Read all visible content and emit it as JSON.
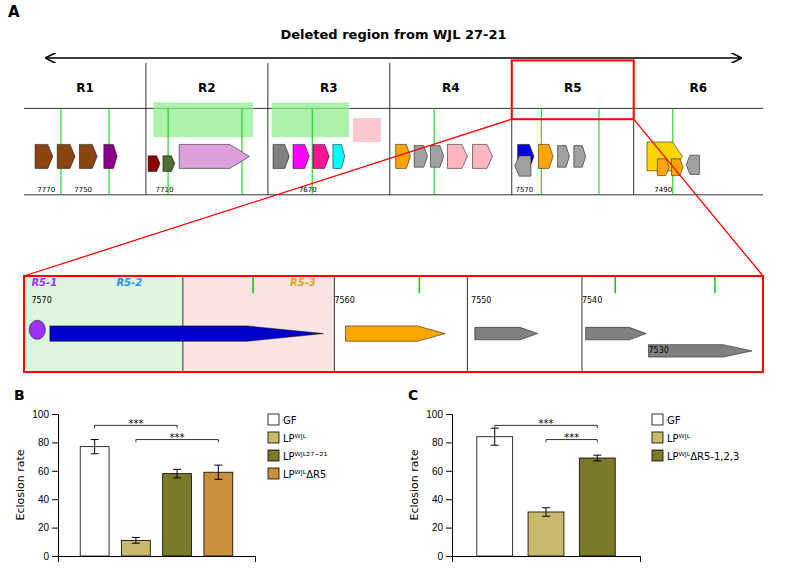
{
  "chart_data": [
    {
      "type": "diagram",
      "title": "Deleted region from WJL 27-21",
      "categories": [
        "R1",
        "R2",
        "R3",
        "R4",
        "R5",
        "R6"
      ],
      "annotations": [
        {
          "text": "A"
        },
        {
          "text": "7770"
        },
        {
          "text": "7750"
        },
        {
          "text": "7710"
        },
        {
          "text": "7670"
        },
        {
          "text": "7570"
        },
        {
          "text": "7490"
        },
        {
          "text": "R5-1",
          "color": "#9b30ff"
        },
        {
          "text": "R5-2",
          "color": "#1e90ff"
        },
        {
          "text": "R5-3",
          "color": "#daa520"
        },
        {
          "text": "7570"
        },
        {
          "text": "7560"
        },
        {
          "text": "7550"
        },
        {
          "text": "7540"
        },
        {
          "text": "7530"
        }
      ]
    },
    {
      "type": "bar",
      "ylabel": "Eclosion rate",
      "categories": [
        null
      ],
      "series": [
        {
          "name": "GF",
          "color": "#ffffff",
          "values": [
            77
          ],
          "errors": [
            5
          ]
        },
        {
          "name": "LPᵂᴶᴸ",
          "color": "#c8b96e",
          "values": [
            11
          ],
          "errors": [
            2
          ]
        },
        {
          "name": "LPᵂᴶᴸ²⁷⁻²¹",
          "color": "#7a7a2a",
          "values": [
            58
          ],
          "errors": [
            3
          ]
        },
        {
          "name": "LPᵂᴶᴸΔR5",
          "color": "#c8913a",
          "values": [
            59
          ],
          "errors": [
            5
          ]
        }
      ],
      "ylim": [
        0,
        100
      ],
      "yticks": [
        0,
        20,
        40,
        60,
        80,
        100
      ],
      "legend": "right",
      "tick_labels": "y",
      "annotations": [
        {
          "text": "B"
        },
        {
          "text": "***",
          "between": [
            "GF",
            "LPᵂᴶᴸ²⁷⁻²¹"
          ]
        },
        {
          "text": "***",
          "between": [
            "LPᵂᴶᴸ",
            "LPᵂᴶᴸΔR5"
          ]
        }
      ]
    },
    {
      "type": "bar",
      "ylabel": "Eclosion rate",
      "categories": [
        null
      ],
      "series": [
        {
          "name": "GF",
          "color": "#ffffff",
          "values": [
            84
          ],
          "errors": [
            6
          ]
        },
        {
          "name": "LPᵂᴶᴸ",
          "color": "#c8b96e",
          "values": [
            31
          ],
          "errors": [
            3
          ]
        },
        {
          "name": "LPᵂᴶᴸΔR5-1,2,3",
          "color": "#7a7a2a",
          "values": [
            69
          ],
          "errors": [
            2
          ]
        }
      ],
      "ylim": [
        0,
        100
      ],
      "yticks": [
        0,
        20,
        40,
        60,
        80,
        100
      ],
      "legend": "right",
      "tick_labels": "y",
      "annotations": [
        {
          "text": "C"
        },
        {
          "text": "***",
          "between": [
            "GF",
            "LPᵂᴶᴸΔR5-1,2,3"
          ]
        },
        {
          "text": "***",
          "between": [
            "LPᵂᴶᴸ",
            "LPᵂᴶᴸΔR5-1,2,3"
          ]
        }
      ]
    }
  ]
}
